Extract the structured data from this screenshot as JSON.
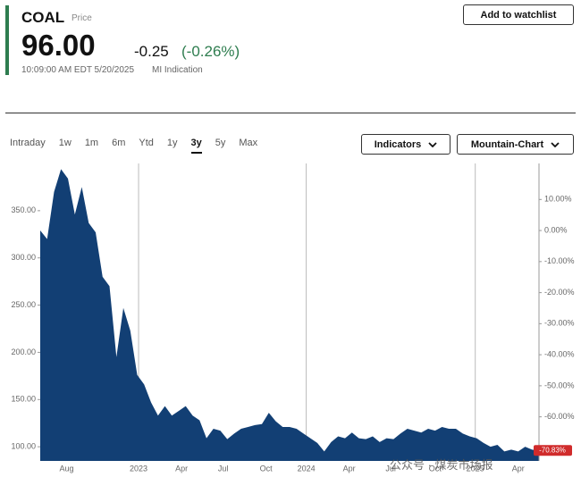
{
  "header": {
    "symbol": "COAL",
    "price_label": "Price",
    "price": "96.00",
    "change": "-0.25",
    "change_pct": "(-0.26%)",
    "timestamp": "10:09:00 AM EDT 5/20/2025",
    "indication": "MI Indication",
    "watchlist_button": "Add to watchlist"
  },
  "toolbar": {
    "ranges": [
      "Intraday",
      "1w",
      "1m",
      "6m",
      "Ytd",
      "1y",
      "3y",
      "5y",
      "Max"
    ],
    "selected": "3y",
    "indicators": "Indicators",
    "chart_type": "Mountain-Chart"
  },
  "watermark": "公众号 · 煤炭市场报",
  "chart_data": {
    "type": "area",
    "color": "#123f74",
    "x": [
      0,
      0.5,
      1,
      1.5,
      2,
      2.5,
      3,
      3.5,
      4,
      4.5,
      5,
      5.5,
      6,
      6.5,
      7,
      7.5,
      8,
      8.5,
      9,
      9.5,
      10,
      10.5,
      11,
      11.5,
      12,
      12.5,
      13,
      13.5,
      14,
      14.5,
      15,
      15.5,
      16,
      16.5,
      17,
      17.5,
      18,
      18.5,
      19,
      19.5,
      20,
      20.5,
      21,
      21.5,
      22,
      22.5,
      23,
      23.5,
      24,
      24.5,
      25,
      25.5,
      26,
      26.5,
      27,
      27.5,
      28,
      28.5,
      29,
      29.5,
      30,
      30.5,
      31,
      31.5,
      32,
      32.5,
      33,
      33.5,
      34,
      34.5,
      35,
      35.5,
      36
    ],
    "series": [
      {
        "values": [
          329,
          320,
          370,
          394,
          384,
          346,
          375,
          337,
          327,
          280,
          270,
          195,
          247,
          223,
          176,
          166,
          147,
          133,
          143,
          133,
          138,
          143,
          133,
          128,
          109,
          119,
          117,
          108,
          114,
          119,
          121,
          123,
          124,
          136,
          127,
          121,
          121,
          119,
          114,
          109,
          104,
          95,
          105,
          111,
          109,
          115,
          109,
          108,
          111,
          105,
          109,
          108,
          114,
          119,
          117,
          115,
          119,
          117,
          121,
          119,
          119,
          114,
          111,
          109,
          104,
          100,
          102,
          95,
          97,
          95,
          100,
          97,
          96
        ]
      }
    ],
    "xlim": [
      0,
      36
    ],
    "xticks": [
      {
        "value": 1.9,
        "label": "Aug"
      },
      {
        "value": 7.1,
        "label": "2023"
      },
      {
        "value": 10.2,
        "label": "Apr"
      },
      {
        "value": 13.2,
        "label": "Jul"
      },
      {
        "value": 16.3,
        "label": "Oct"
      },
      {
        "value": 19.2,
        "label": "2024"
      },
      {
        "value": 22.3,
        "label": "Apr"
      },
      {
        "value": 25.3,
        "label": "Jul"
      },
      {
        "value": 28.5,
        "label": "Oct"
      },
      {
        "value": 31.4,
        "label": "2025"
      },
      {
        "value": 34.5,
        "label": "Apr"
      }
    ],
    "ylim": [
      85,
      400
    ],
    "yticks": [
      {
        "value": 100,
        "label": "100.00"
      },
      {
        "value": 150,
        "label": "150.00"
      },
      {
        "value": 200,
        "label": "200.00"
      },
      {
        "value": 250,
        "label": "250.00"
      },
      {
        "value": 300,
        "label": "300.00"
      },
      {
        "value": 350,
        "label": "350.00"
      }
    ],
    "y2lim": [
      -74.2,
      21.6
    ],
    "y2ticks": [
      {
        "value": 10,
        "label": "10.00%"
      },
      {
        "value": 0,
        "label": "0.00%"
      },
      {
        "value": -10,
        "label": "-10.00%"
      },
      {
        "value": -20,
        "label": "-20.00%"
      },
      {
        "value": -30,
        "label": "-30.00%"
      },
      {
        "value": -40,
        "label": "-40.00%"
      },
      {
        "value": -50,
        "label": "-50.00%"
      },
      {
        "value": -60,
        "label": "-60.00%"
      }
    ],
    "last_change": {
      "value": -70.83,
      "label": "-70.83%"
    }
  }
}
